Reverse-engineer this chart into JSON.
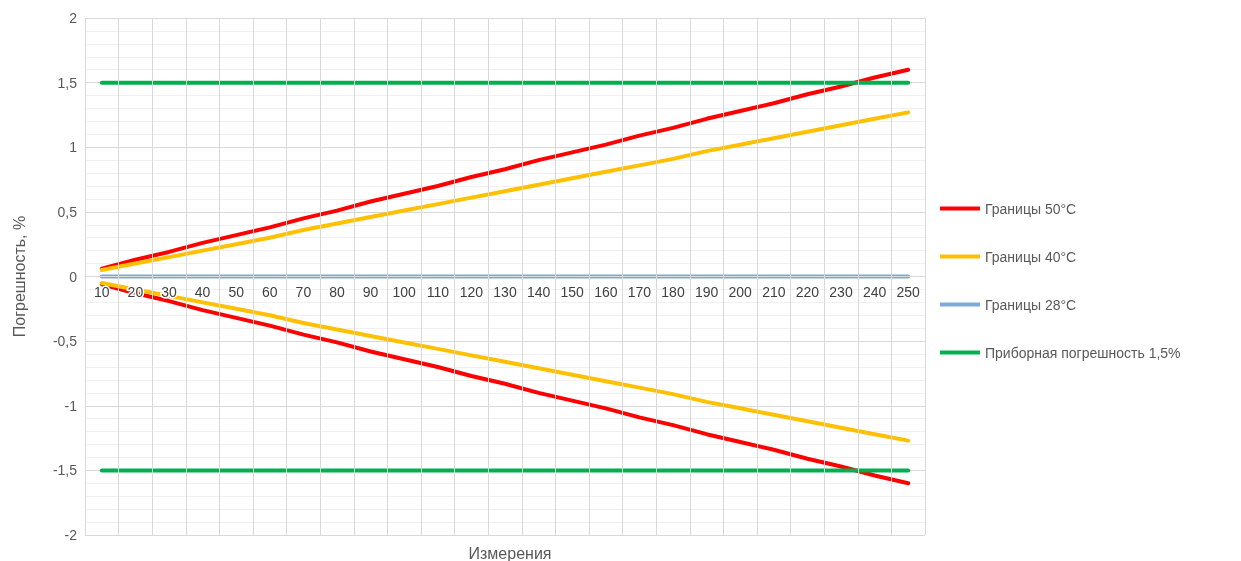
{
  "chart_data": {
    "type": "line",
    "xlabel": "Измерения",
    "ylabel": "Погрешность, %",
    "categories": [
      "10",
      "20",
      "30",
      "40",
      "50",
      "60",
      "70",
      "80",
      "90",
      "100",
      "110",
      "120",
      "130",
      "140",
      "150",
      "160",
      "170",
      "180",
      "190",
      "200",
      "210",
      "220",
      "230",
      "240",
      "250"
    ],
    "series": [
      {
        "name": "Границы 50°C",
        "color": "#ff0000",
        "values": [
          0.06,
          0.13,
          0.19,
          0.26,
          0.32,
          0.38,
          0.45,
          0.51,
          0.58,
          0.64,
          0.7,
          0.77,
          0.83,
          0.9,
          0.96,
          1.02,
          1.09,
          1.15,
          1.22,
          1.28,
          1.34,
          1.41,
          1.47,
          1.54,
          1.6
        ]
      },
      {
        "color": "#ff0000",
        "values": [
          -0.06,
          -0.13,
          -0.19,
          -0.26,
          -0.32,
          -0.38,
          -0.45,
          -0.51,
          -0.58,
          -0.64,
          -0.7,
          -0.77,
          -0.83,
          -0.9,
          -0.96,
          -1.02,
          -1.09,
          -1.15,
          -1.22,
          -1.28,
          -1.34,
          -1.41,
          -1.47,
          -1.54,
          -1.6
        ]
      },
      {
        "name": "Границы 40°C",
        "color": "#ffc000",
        "values": [
          0.05,
          0.1,
          0.15,
          0.2,
          0.25,
          0.3,
          0.36,
          0.41,
          0.46,
          0.51,
          0.56,
          0.61,
          0.66,
          0.71,
          0.76,
          0.81,
          0.86,
          0.91,
          0.97,
          1.02,
          1.07,
          1.12,
          1.17,
          1.22,
          1.27
        ]
      },
      {
        "color": "#ffc000",
        "values": [
          -0.05,
          -0.1,
          -0.15,
          -0.2,
          -0.25,
          -0.3,
          -0.36,
          -0.41,
          -0.46,
          -0.51,
          -0.56,
          -0.61,
          -0.66,
          -0.71,
          -0.76,
          -0.81,
          -0.86,
          -0.91,
          -0.97,
          -1.02,
          -1.07,
          -1.12,
          -1.17,
          -1.22,
          -1.27
        ]
      },
      {
        "name": "Границы 28°C",
        "color": "#7fa9d9",
        "values": [
          0,
          0,
          0,
          0,
          0,
          0,
          0,
          0,
          0,
          0,
          0,
          0,
          0,
          0,
          0,
          0,
          0,
          0,
          0,
          0,
          0,
          0,
          0,
          0,
          0
        ]
      },
      {
        "name": "Приборная погрешность 1,5%",
        "color": "#00b050",
        "values": [
          1.5,
          1.5,
          1.5,
          1.5,
          1.5,
          1.5,
          1.5,
          1.5,
          1.5,
          1.5,
          1.5,
          1.5,
          1.5,
          1.5,
          1.5,
          1.5,
          1.5,
          1.5,
          1.5,
          1.5,
          1.5,
          1.5,
          1.5,
          1.5,
          1.5
        ]
      },
      {
        "color": "#00b050",
        "values": [
          -1.5,
          -1.5,
          -1.5,
          -1.5,
          -1.5,
          -1.5,
          -1.5,
          -1.5,
          -1.5,
          -1.5,
          -1.5,
          -1.5,
          -1.5,
          -1.5,
          -1.5,
          -1.5,
          -1.5,
          -1.5,
          -1.5,
          -1.5,
          -1.5,
          -1.5,
          -1.5,
          -1.5,
          -1.5
        ]
      }
    ],
    "ylim": [
      -2,
      2
    ],
    "yticks": [
      -2,
      {
        "value": -1.5,
        "label": "-1,5"
      },
      -1,
      {
        "value": -0.5,
        "label": "-0,5"
      },
      0,
      {
        "value": 0.5,
        "label": "0,5"
      },
      1,
      {
        "value": 1.5,
        "label": "1,5"
      },
      2
    ],
    "grid": true,
    "legend": "right",
    "marker": "none",
    "line_style": "solid"
  }
}
